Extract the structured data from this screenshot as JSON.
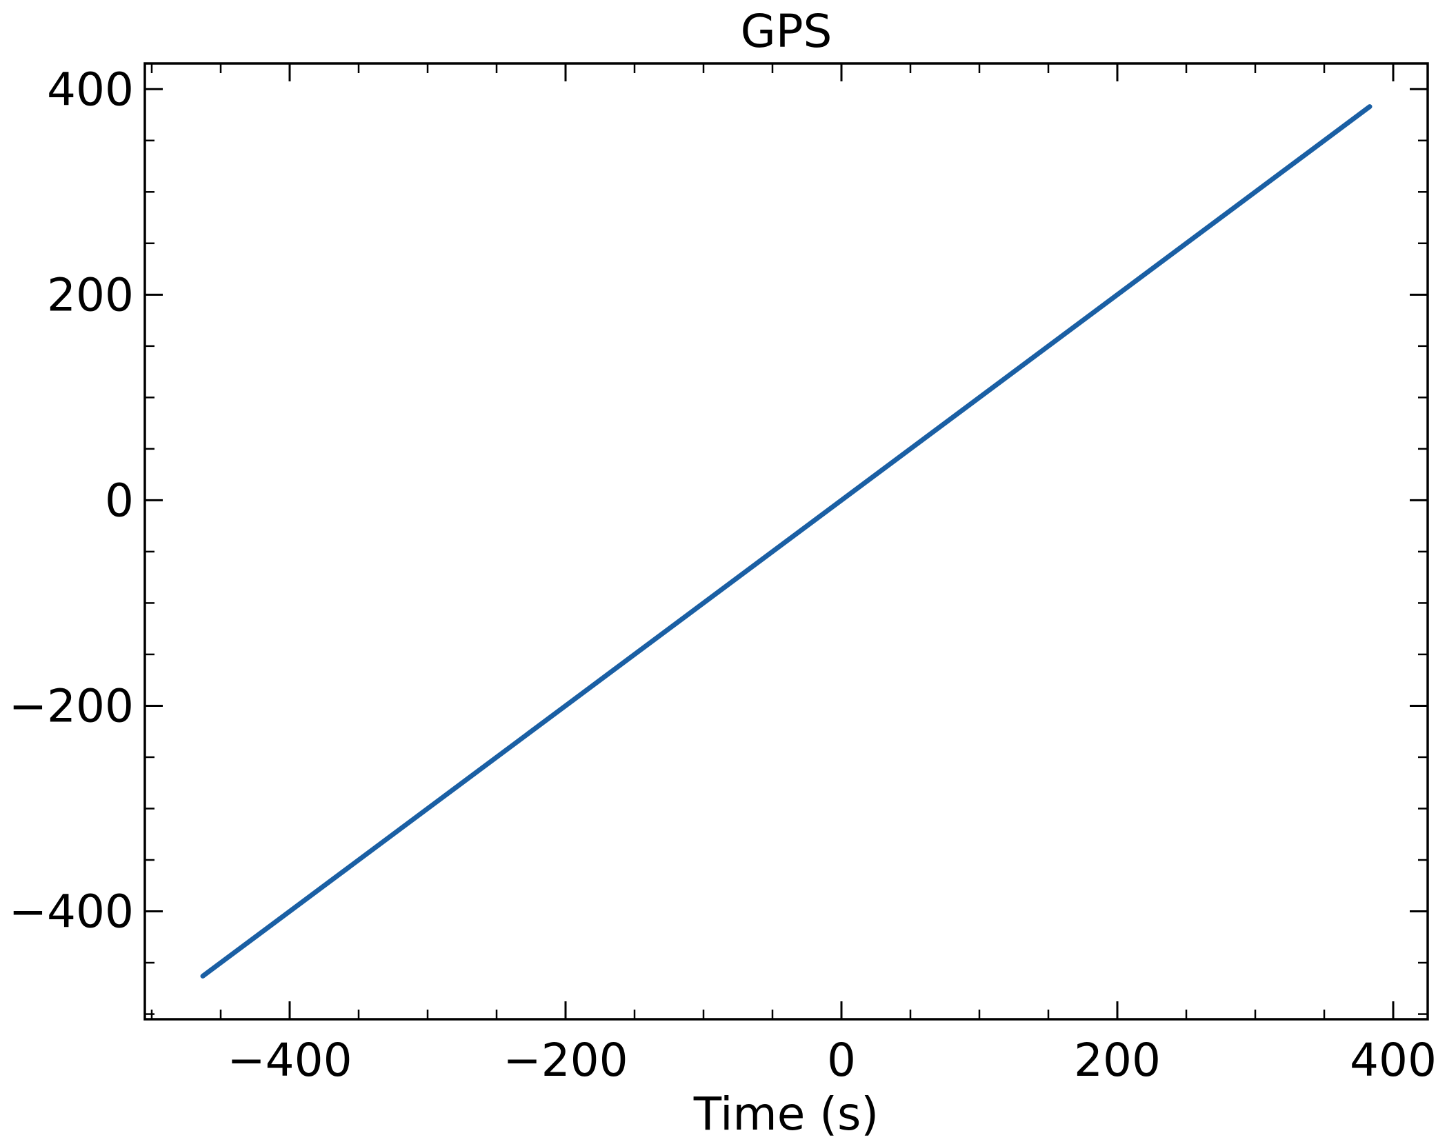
{
  "chart_data": {
    "type": "line",
    "title": "GPS",
    "xlabel": "Time (s)",
    "ylabel": "",
    "xlim": [
      -505,
      425
    ],
    "ylim": [
      -505,
      425
    ],
    "xticks": [
      -400,
      -200,
      0,
      200,
      400
    ],
    "yticks": [
      -400,
      -200,
      0,
      200,
      400
    ],
    "xtick_labels": [
      "−400",
      "−200",
      "0",
      "200",
      "400"
    ],
    "ytick_labels": [
      "−400",
      "−200",
      "0",
      "200",
      "400"
    ],
    "x_minor_step": 50,
    "y_minor_step": 50,
    "grid": false,
    "legend": "none",
    "colors": {
      "line": "#1a5fa4",
      "axes": "#000000",
      "background": "#ffffff"
    },
    "series": [
      {
        "x": [
          -463,
          383
        ],
        "y": [
          -463,
          383
        ]
      }
    ]
  }
}
